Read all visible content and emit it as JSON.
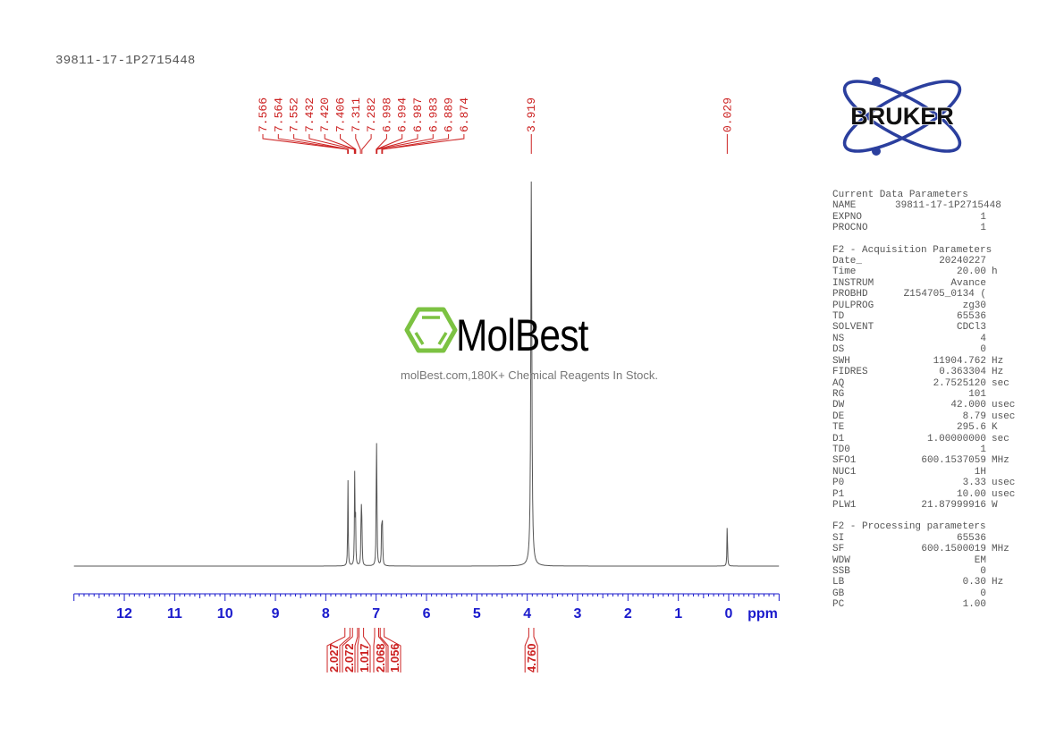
{
  "sample_id": "39811-17-1P2715448",
  "logo": {
    "name": "BRUKER",
    "color": "#2b3f9e"
  },
  "watermark": {
    "brand": "MolBest",
    "tagline": "molBest.com,180K+ Chemical Reagents In Stock.",
    "accent": "#7cc242"
  },
  "colors": {
    "axis": "#1a1acc",
    "peak_labels": "#cc2222",
    "spectrum": "#555555"
  },
  "params": {
    "current": {
      "title": "Current Data Parameters",
      "rows": [
        {
          "k": "NAME",
          "v": "39811-17-1P2715448",
          "u": ""
        },
        {
          "k": "EXPNO",
          "v": "1",
          "u": ""
        },
        {
          "k": "PROCNO",
          "v": "1",
          "u": ""
        }
      ]
    },
    "acquisition": {
      "title": "F2 - Acquisition Parameters",
      "rows": [
        {
          "k": "Date_",
          "v": "20240227",
          "u": ""
        },
        {
          "k": "Time",
          "v": "20.00",
          "u": "h"
        },
        {
          "k": "INSTRUM",
          "v": "Avance",
          "u": ""
        },
        {
          "k": "PROBHD",
          "v": "Z154705_0134 (",
          "u": ""
        },
        {
          "k": "PULPROG",
          "v": "zg30",
          "u": ""
        },
        {
          "k": "TD",
          "v": "65536",
          "u": ""
        },
        {
          "k": "SOLVENT",
          "v": "CDCl3",
          "u": ""
        },
        {
          "k": "NS",
          "v": "4",
          "u": ""
        },
        {
          "k": "DS",
          "v": "0",
          "u": ""
        },
        {
          "k": "SWH",
          "v": "11904.762",
          "u": "Hz"
        },
        {
          "k": "FIDRES",
          "v": "0.363304",
          "u": "Hz"
        },
        {
          "k": "AQ",
          "v": "2.7525120",
          "u": "sec"
        },
        {
          "k": "RG",
          "v": "101",
          "u": ""
        },
        {
          "k": "DW",
          "v": "42.000",
          "u": "usec"
        },
        {
          "k": "DE",
          "v": "8.79",
          "u": "usec"
        },
        {
          "k": "TE",
          "v": "295.6",
          "u": "K"
        },
        {
          "k": "D1",
          "v": "1.00000000",
          "u": "sec"
        },
        {
          "k": "TD0",
          "v": "1",
          "u": ""
        },
        {
          "k": "SFO1",
          "v": "600.1537059",
          "u": "MHz"
        },
        {
          "k": "NUC1",
          "v": "1H",
          "u": ""
        },
        {
          "k": "P0",
          "v": "3.33",
          "u": "usec"
        },
        {
          "k": "P1",
          "v": "10.00",
          "u": "usec"
        },
        {
          "k": "PLW1",
          "v": "21.87999916",
          "u": "W"
        }
      ]
    },
    "processing": {
      "title": "F2 - Processing parameters",
      "rows": [
        {
          "k": "SI",
          "v": "65536",
          "u": ""
        },
        {
          "k": "SF",
          "v": "600.1500019",
          "u": "MHz"
        },
        {
          "k": "WDW",
          "v": "EM",
          "u": ""
        },
        {
          "k": "SSB",
          "v": "0",
          "u": ""
        },
        {
          "k": "LB",
          "v": "0.30",
          "u": "Hz"
        },
        {
          "k": "GB",
          "v": "0",
          "u": ""
        },
        {
          "k": "PC",
          "v": "1.00",
          "u": ""
        }
      ]
    }
  },
  "chart_data": {
    "type": "line",
    "title": "39811-17-1P2715448",
    "xlabel": "ppm",
    "ylabel": "",
    "xlim": [
      13.0,
      -1.0
    ],
    "x_reversed": true,
    "grid": false,
    "x_ticks": [
      12,
      11,
      10,
      9,
      8,
      7,
      6,
      5,
      4,
      3,
      2,
      1,
      0
    ],
    "peak_labels": [
      "7.566",
      "7.564",
      "7.552",
      "7.432",
      "7.420",
      "7.406",
      "7.311",
      "7.282",
      "6.998",
      "6.994",
      "6.987",
      "6.983",
      "6.889",
      "6.874",
      "3.919",
      "0.029"
    ],
    "peaks": [
      {
        "ppm": 7.56,
        "height": 0.23
      },
      {
        "ppm": 7.426,
        "height": 0.23
      },
      {
        "ppm": 7.41,
        "height": 0.13
      },
      {
        "ppm": 7.296,
        "height": 0.18
      },
      {
        "ppm": 7.282,
        "height": 0.1
      },
      {
        "ppm": 6.994,
        "height": 0.33
      },
      {
        "ppm": 6.985,
        "height": 0.12
      },
      {
        "ppm": 6.889,
        "height": 0.14
      },
      {
        "ppm": 6.874,
        "height": 0.1
      },
      {
        "ppm": 3.919,
        "height": 1.0
      },
      {
        "ppm": 0.029,
        "height": 0.12
      }
    ],
    "integrals": [
      {
        "from": 7.62,
        "to": 7.52,
        "value": "2.027"
      },
      {
        "from": 7.47,
        "to": 7.37,
        "value": "2.072"
      },
      {
        "from": 7.34,
        "to": 7.25,
        "value": "1.017"
      },
      {
        "from": 7.03,
        "to": 6.95,
        "value": "2.068"
      },
      {
        "from": 6.92,
        "to": 6.84,
        "value": "1.056"
      },
      {
        "from": 3.97,
        "to": 3.87,
        "value": "4.760"
      }
    ]
  }
}
